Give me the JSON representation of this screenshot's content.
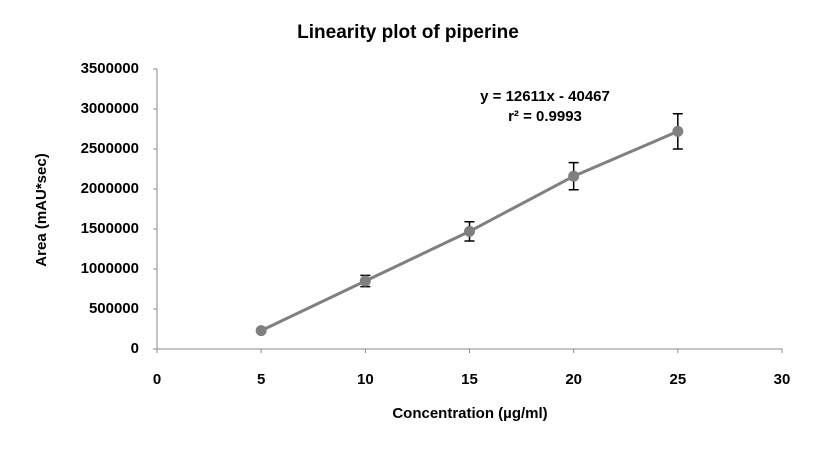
{
  "chart_data": {
    "type": "line",
    "title": "Linearity plot of piperine",
    "x_label": "Concentration (µg/ml)",
    "y_label": "Area  (mAU*sec)",
    "x": [
      5,
      10,
      15,
      20,
      25
    ],
    "values": [
      230000,
      850000,
      1470000,
      2160000,
      2720000
    ],
    "errors": [
      10000,
      70000,
      120000,
      170000,
      220000
    ],
    "color": "#808080",
    "error_color": "#000000",
    "xlim": [
      0,
      30
    ],
    "xticks": [
      0,
      5,
      10,
      15,
      20,
      25,
      30
    ],
    "ylim": [
      0,
      3500000
    ],
    "yticks": [
      0,
      500000,
      1000000,
      1500000,
      2000000,
      2500000,
      3000000,
      3500000
    ],
    "grid": false,
    "annotations": [
      "y = 12611x - 40467",
      "r² = 0.9993"
    ]
  }
}
